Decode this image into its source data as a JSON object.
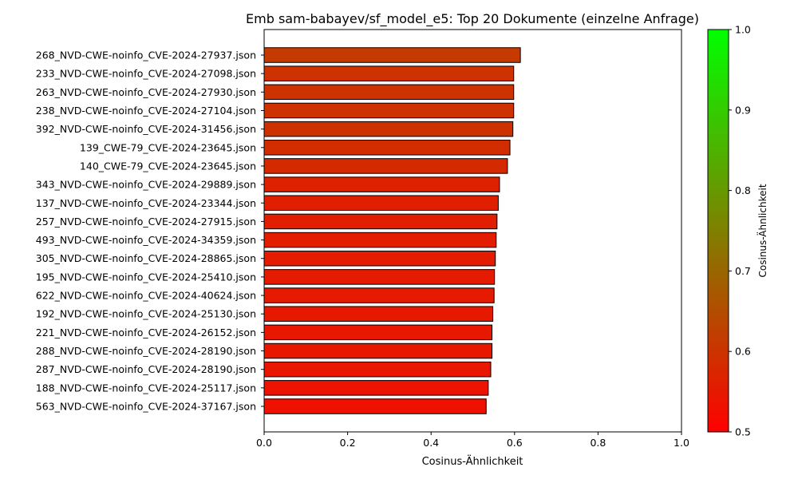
{
  "chart_data": {
    "type": "bar",
    "orientation": "horizontal",
    "title": "Emb sam-babayev/sf_model_e5: Top 20 Dokumente (einzelne Anfrage)",
    "xlabel": "Cosinus-Ähnlichkeit",
    "ylabel": "",
    "xlim": [
      0.0,
      1.0
    ],
    "xticks": [
      "0.0",
      "0.2",
      "0.4",
      "0.6",
      "0.8",
      "1.0"
    ],
    "grid": false,
    "categories": [
      "268_NVD-CWE-noinfo_CVE-2024-27937.json",
      "233_NVD-CWE-noinfo_CVE-2024-27098.json",
      "263_NVD-CWE-noinfo_CVE-2024-27930.json",
      "238_NVD-CWE-noinfo_CVE-2024-27104.json",
      "392_NVD-CWE-noinfo_CVE-2024-31456.json",
      "139_CWE-79_CVE-2024-23645.json",
      "140_CWE-79_CVE-2024-23645.json",
      "343_NVD-CWE-noinfo_CVE-2024-29889.json",
      "137_NVD-CWE-noinfo_CVE-2024-23344.json",
      "257_NVD-CWE-noinfo_CVE-2024-27915.json",
      "493_NVD-CWE-noinfo_CVE-2024-34359.json",
      "305_NVD-CWE-noinfo_CVE-2024-28865.json",
      "195_NVD-CWE-noinfo_CVE-2024-25410.json",
      "622_NVD-CWE-noinfo_CVE-2024-40624.json",
      "192_NVD-CWE-noinfo_CVE-2024-25130.json",
      "221_NVD-CWE-noinfo_CVE-2024-26152.json",
      "288_NVD-CWE-noinfo_CVE-2024-28190.json",
      "287_NVD-CWE-noinfo_CVE-2024-28190.json",
      "188_NVD-CWE-noinfo_CVE-2024-25117.json",
      "563_NVD-CWE-noinfo_CVE-2024-37167.json"
    ],
    "values": [
      0.614,
      0.598,
      0.598,
      0.598,
      0.596,
      0.589,
      0.583,
      0.564,
      0.561,
      0.558,
      0.556,
      0.554,
      0.552,
      0.551,
      0.548,
      0.546,
      0.546,
      0.543,
      0.537,
      0.532
    ],
    "colorbar": {
      "label": "Cosinus-Ähnlichkeit",
      "range": [
        0.5,
        1.0
      ],
      "ticks": [
        "0.5",
        "0.6",
        "0.7",
        "0.8",
        "0.9",
        "1.0"
      ],
      "colormap": [
        "#ff0000",
        "#00ff00"
      ]
    },
    "bar_edge_color": "#000000"
  }
}
